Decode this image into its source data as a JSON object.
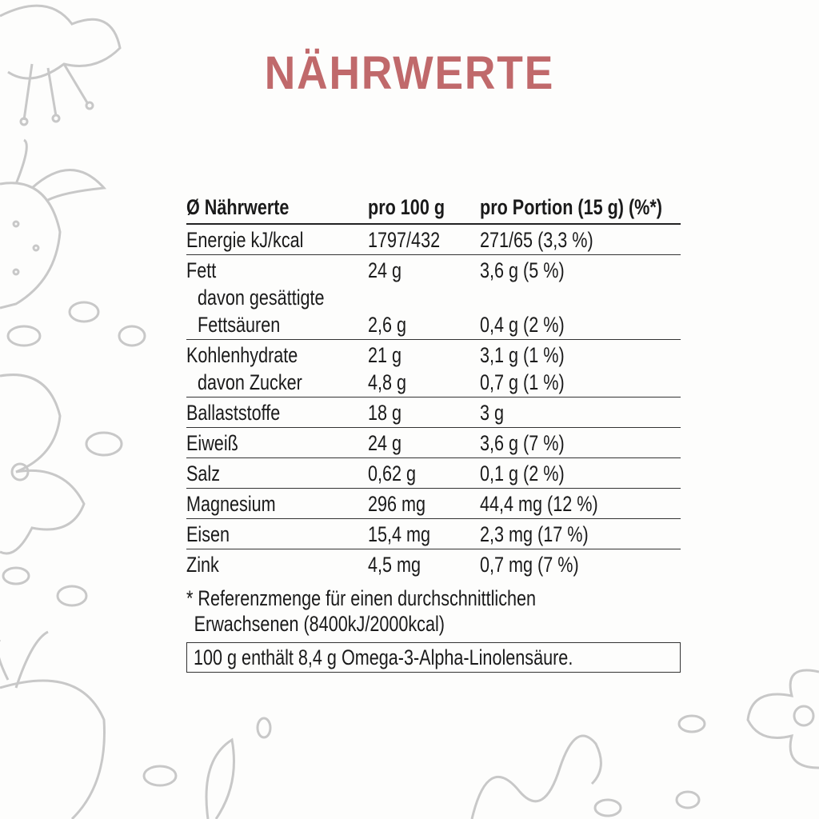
{
  "title": "NÄHRWERTE",
  "header": {
    "col1": "Ø Nährwerte",
    "col2": "pro 100 g",
    "col3": "pro Portion (15 g) (%*)"
  },
  "rows": [
    {
      "lines": [
        {
          "label": "Energie kJ/kcal",
          "per100": "1797/432",
          "portion": "271/65 (3,3 %)"
        }
      ]
    },
    {
      "lines": [
        {
          "label": "Fett",
          "per100": "24 g",
          "portion": "3,6 g (5 %)"
        },
        {
          "label": "davon gesättigte",
          "per100": "",
          "portion": ""
        },
        {
          "label": "Fettsäuren",
          "per100": "2,6 g",
          "portion": "0,4 g (2 %)"
        }
      ]
    },
    {
      "lines": [
        {
          "label": "Kohlenhydrate",
          "per100": "21 g",
          "portion": "3,1 g (1 %)"
        },
        {
          "label": "davon Zucker",
          "per100": "4,8 g",
          "portion": "0,7 g (1 %)"
        }
      ]
    },
    {
      "lines": [
        {
          "label": "Ballaststoffe",
          "per100": "18 g",
          "portion": "3 g"
        }
      ]
    },
    {
      "lines": [
        {
          "label": "Eiweiß",
          "per100": "24 g",
          "portion": "3,6 g (7 %)"
        }
      ]
    },
    {
      "lines": [
        {
          "label": "Salz",
          "per100": "0,62 g",
          "portion": "0,1 g (2 %)"
        }
      ]
    },
    {
      "lines": [
        {
          "label": "Magnesium",
          "per100": "296 mg",
          "portion": "44,4 mg (12 %)"
        }
      ]
    },
    {
      "lines": [
        {
          "label": "Eisen",
          "per100": "15,4 mg",
          "portion": "2,3 mg (17 %)"
        }
      ]
    },
    {
      "lines": [
        {
          "label": "Zink",
          "per100": "4,5 mg",
          "portion": "0,7 mg (7 %)"
        }
      ]
    }
  ],
  "footnote": [
    "* Referenzmenge für einen durchschnittlichen",
    "  Erwachsenen (8400kJ/2000kcal)"
  ],
  "note": "100 g enthält 8,4 g Omega-3-Alpha-Linolensäure.",
  "colors": {
    "title": "#c0696b",
    "sketch": "#c8c8c8"
  }
}
